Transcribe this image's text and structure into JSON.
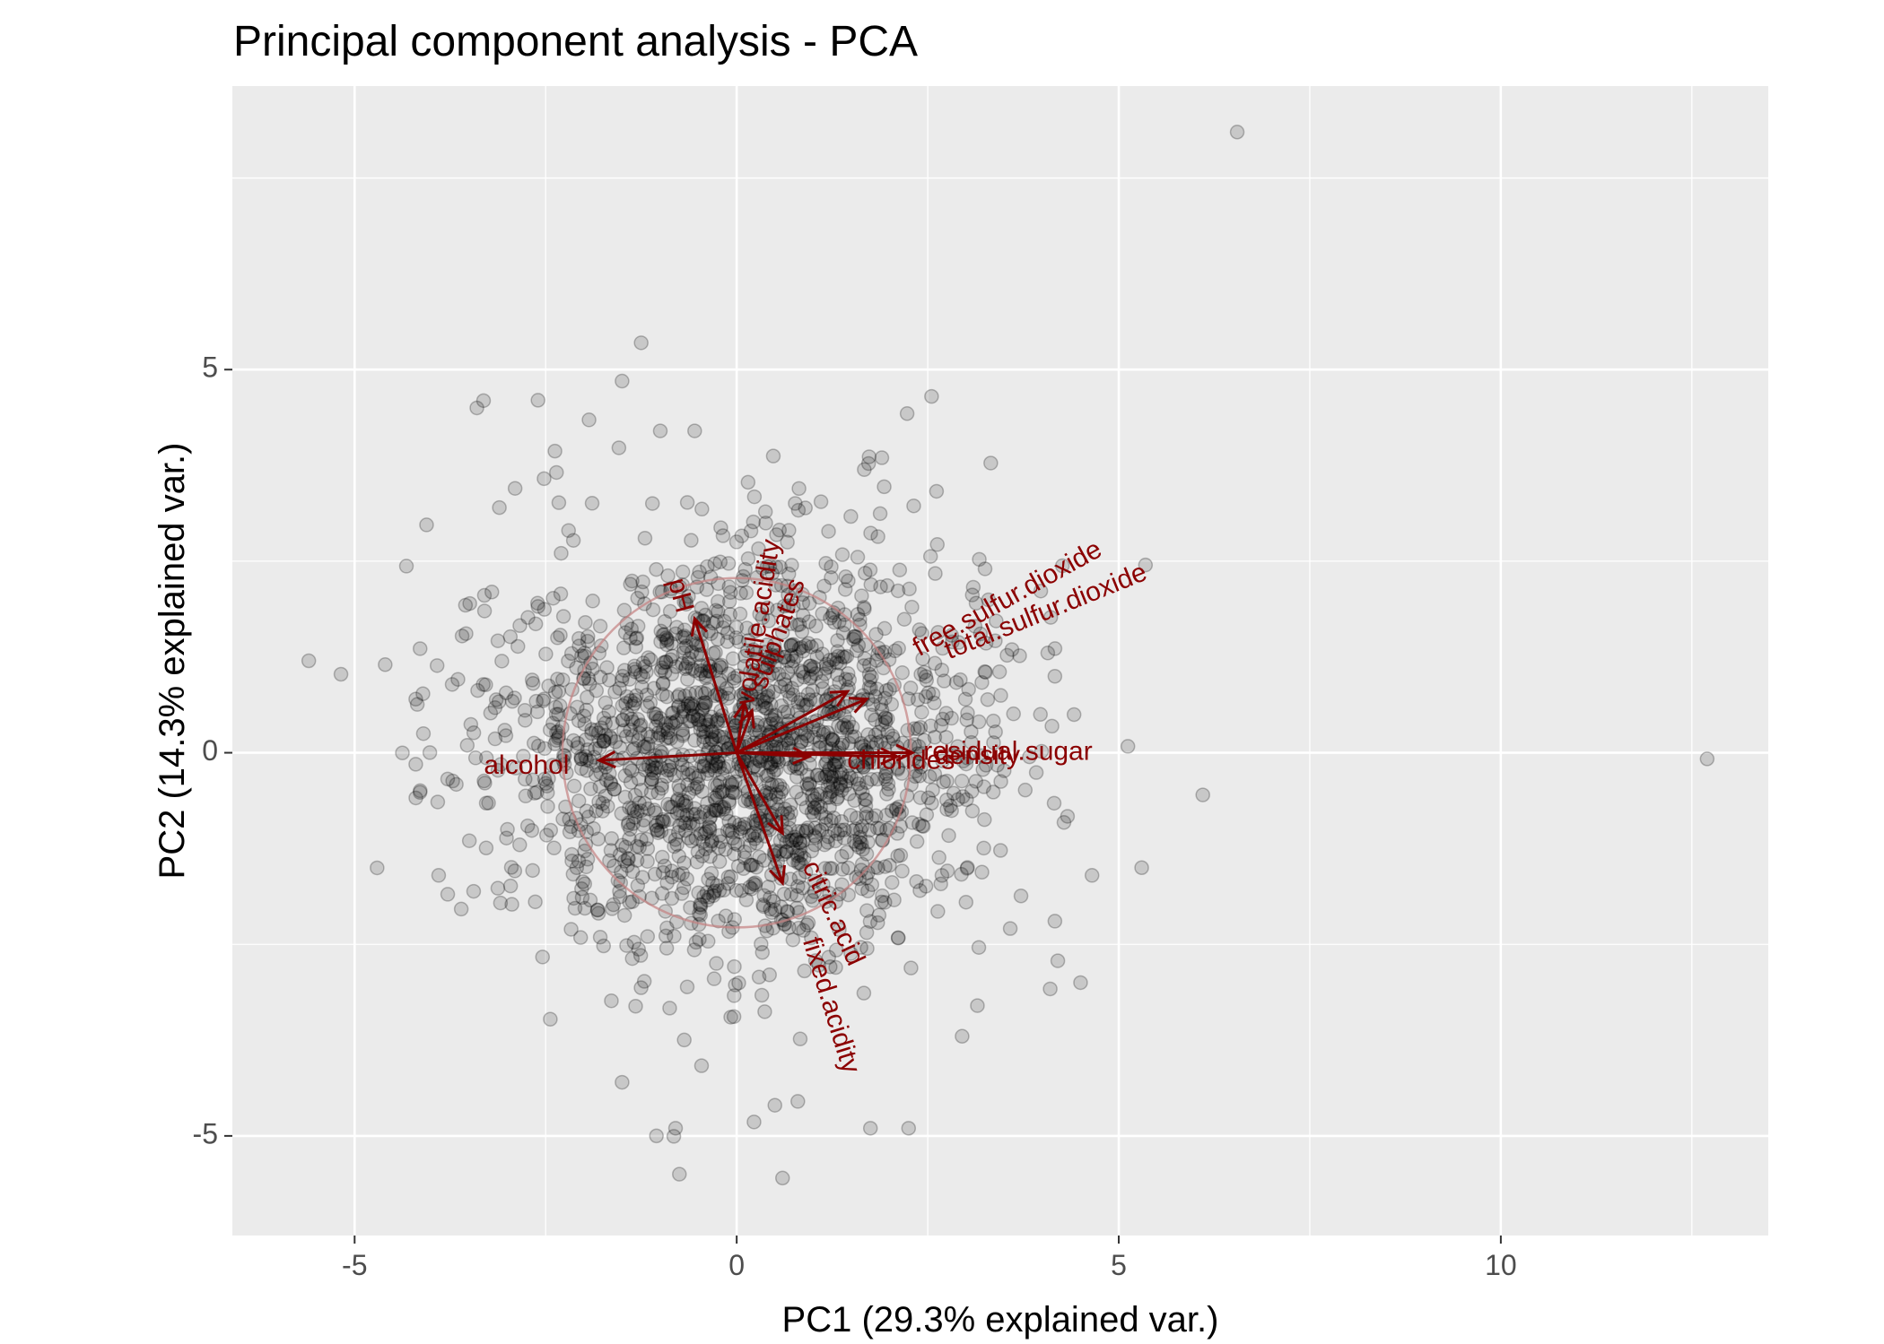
{
  "chart_data": {
    "type": "scatter",
    "title": "Principal component analysis - PCA",
    "xlabel": "PC1 (29.3% explained var.)",
    "ylabel": "PC2 (14.3% explained var.)",
    "xlim": [
      -6.6,
      13.5
    ],
    "ylim": [
      -6.3,
      8.7
    ],
    "x_ticks": [
      -5,
      0,
      5,
      10
    ],
    "y_ticks": [
      -5,
      0,
      5
    ],
    "grid": true,
    "colors": {
      "panel": "#EBEBEB",
      "grid": "#FFFFFF",
      "points": "#000000",
      "arrows": "#8B0000",
      "circle": "#C48080",
      "tick_text": "#4D4D4D"
    },
    "circle_radius": 2.28,
    "scatter_points_sample": [
      [
        -5.6,
        1.2
      ],
      [
        -4.6,
        1.15
      ],
      [
        -4.2,
        0.7
      ],
      [
        -4.1,
        0.25
      ],
      [
        -4.2,
        -0.15
      ],
      [
        -3.4,
        4.5
      ],
      [
        -2.6,
        4.6
      ],
      [
        -1.5,
        4.85
      ],
      [
        -1.25,
        5.35
      ],
      [
        -1.0,
        4.2
      ],
      [
        -0.55,
        4.2
      ],
      [
        2.55,
        4.65
      ],
      [
        1.9,
        3.85
      ],
      [
        6.55,
        8.1
      ],
      [
        12.7,
        -0.08
      ],
      [
        6.1,
        -0.55
      ],
      [
        -1.5,
        -4.3
      ],
      [
        -1.05,
        -5.0
      ],
      [
        -0.8,
        -4.9
      ],
      [
        -0.75,
        -5.5
      ],
      [
        0.6,
        -5.55
      ],
      [
        0.5,
        -4.6
      ],
      [
        0.8,
        -4.55
      ],
      [
        1.75,
        -4.9
      ],
      [
        2.25,
        -4.9
      ],
      [
        2.95,
        -3.7
      ],
      [
        3.15,
        -3.3
      ],
      [
        4.5,
        -3.0
      ],
      [
        5.3,
        -1.5
      ],
      [
        4.65,
        -1.6
      ],
      [
        -3.9,
        -1.6
      ],
      [
        -3.0,
        -1.0
      ],
      [
        -2.2,
        2.9
      ],
      [
        3.25,
        2.4
      ],
      [
        5.35,
        2.45
      ],
      [
        -3.3,
        1.85
      ],
      [
        -2.9,
        3.45
      ],
      [
        -2.5,
        -0.4
      ],
      [
        -1.8,
        1.3
      ],
      [
        -1.2,
        2.8
      ]
    ],
    "loadings": [
      {
        "name": "alcohol",
        "x": -1.8,
        "y": -0.1
      },
      {
        "name": "pH",
        "x": -0.55,
        "y": 1.75
      },
      {
        "name": "volatile.acidity",
        "x": 0.1,
        "y": 0.65
      },
      {
        "name": "sulphates",
        "x": 0.2,
        "y": 0.55
      },
      {
        "name": "free.sulfur.dioxide",
        "x": 1.45,
        "y": 0.8
      },
      {
        "name": "total.sulfur.dioxide",
        "x": 1.7,
        "y": 0.7
      },
      {
        "name": "residual.sugar",
        "x": 2.3,
        "y": 0.0
      },
      {
        "name": "density",
        "x": 2.1,
        "y": -0.05
      },
      {
        "name": "chlorides",
        "x": 0.95,
        "y": -0.05
      },
      {
        "name": "citric.acid",
        "x": 0.6,
        "y": -1.05
      },
      {
        "name": "fixed.acidity",
        "x": 0.6,
        "y": -1.7
      }
    ],
    "variable_labels": [
      {
        "text": "alcohol",
        "x": -2.75,
        "y": -0.18,
        "angle": 0
      },
      {
        "text": "pH",
        "x": -0.75,
        "y": 2.05,
        "angle": 75
      },
      {
        "text": "volatile.acidity",
        "x": 0.3,
        "y": 1.7,
        "angle": -81
      },
      {
        "text": "sulphates",
        "x": 0.55,
        "y": 1.55,
        "angle": -70
      },
      {
        "text": "free.sulfur.dioxide",
        "x": 3.55,
        "y": 2.0,
        "angle": -29
      },
      {
        "text": "total.sulfur.dioxide",
        "x": 4.05,
        "y": 1.83,
        "angle": -22
      },
      {
        "text": "residual.sugar",
        "x": 3.55,
        "y": 0.0,
        "angle": 0
      },
      {
        "text": "density",
        "x": 3.15,
        "y": -0.05,
        "angle": 0
      },
      {
        "text": "chlorides",
        "x": 2.15,
        "y": -0.12,
        "angle": 0
      },
      {
        "text": "citric.acid",
        "x": 1.25,
        "y": -2.1,
        "angle": 65
      },
      {
        "text": "fixed.acidity",
        "x": 1.22,
        "y": -3.3,
        "angle": 73
      }
    ]
  }
}
